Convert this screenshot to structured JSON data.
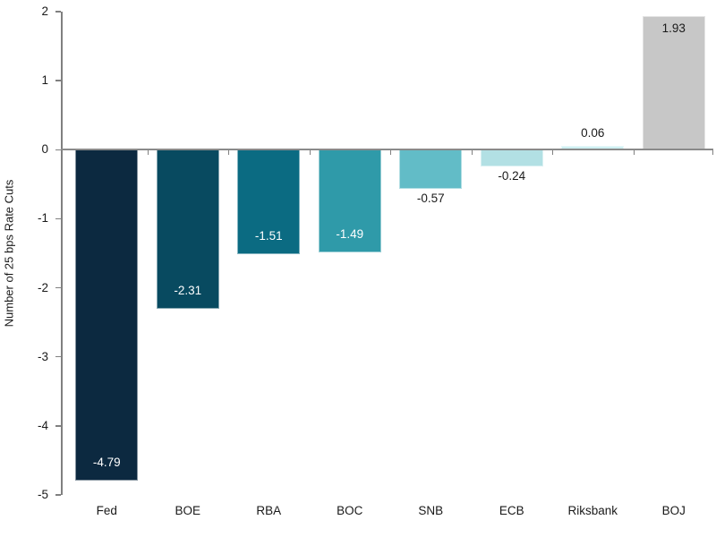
{
  "chart_data": {
    "type": "bar",
    "title": "",
    "xlabel": "",
    "ylabel": "Number of 25 bps Rate Cuts",
    "ylim": [
      -5,
      2
    ],
    "yticks": [
      2,
      1,
      0,
      -1,
      -2,
      -3,
      -4,
      -5
    ],
    "ytick_labels": [
      "2",
      "1",
      "0",
      "-1",
      "-2",
      "-3",
      "-4",
      "-5"
    ],
    "grid": false,
    "legend": null,
    "categories": [
      "Fed",
      "BOE",
      "RBA",
      "BOC",
      "SNB",
      "ECB",
      "Riksbank",
      "BOJ"
    ],
    "values": [
      -4.79,
      -2.31,
      -1.51,
      -1.49,
      -0.57,
      -0.24,
      0.06,
      1.93
    ],
    "value_labels": [
      "-4.79",
      "-2.31",
      "-1.51",
      "-1.49",
      "-0.57",
      "-0.24",
      "0.06",
      "1.93"
    ],
    "bar_colors": [
      "#0c2940",
      "#084a60",
      "#0b6b82",
      "#2f9aa9",
      "#62bcc7",
      "#b2e0e4",
      "#cff0f2",
      "#c7c7c7"
    ],
    "label_colors": [
      "#ffffff",
      "#ffffff",
      "#ffffff",
      "#ffffff",
      "#1a1a1a",
      "#1a1a1a",
      "#1a1a1a",
      "#1a1a1a"
    ],
    "label_placements": [
      "inside-end",
      "inside-end",
      "inside-end",
      "inside-end",
      "outside-end",
      "outside-end",
      "outside-end",
      "inside-end"
    ]
  },
  "colors": {
    "background": "#ffffff",
    "axis": "#808080",
    "zero_line": "#8a8a8a",
    "tick_text": "#1a1a1a"
  }
}
